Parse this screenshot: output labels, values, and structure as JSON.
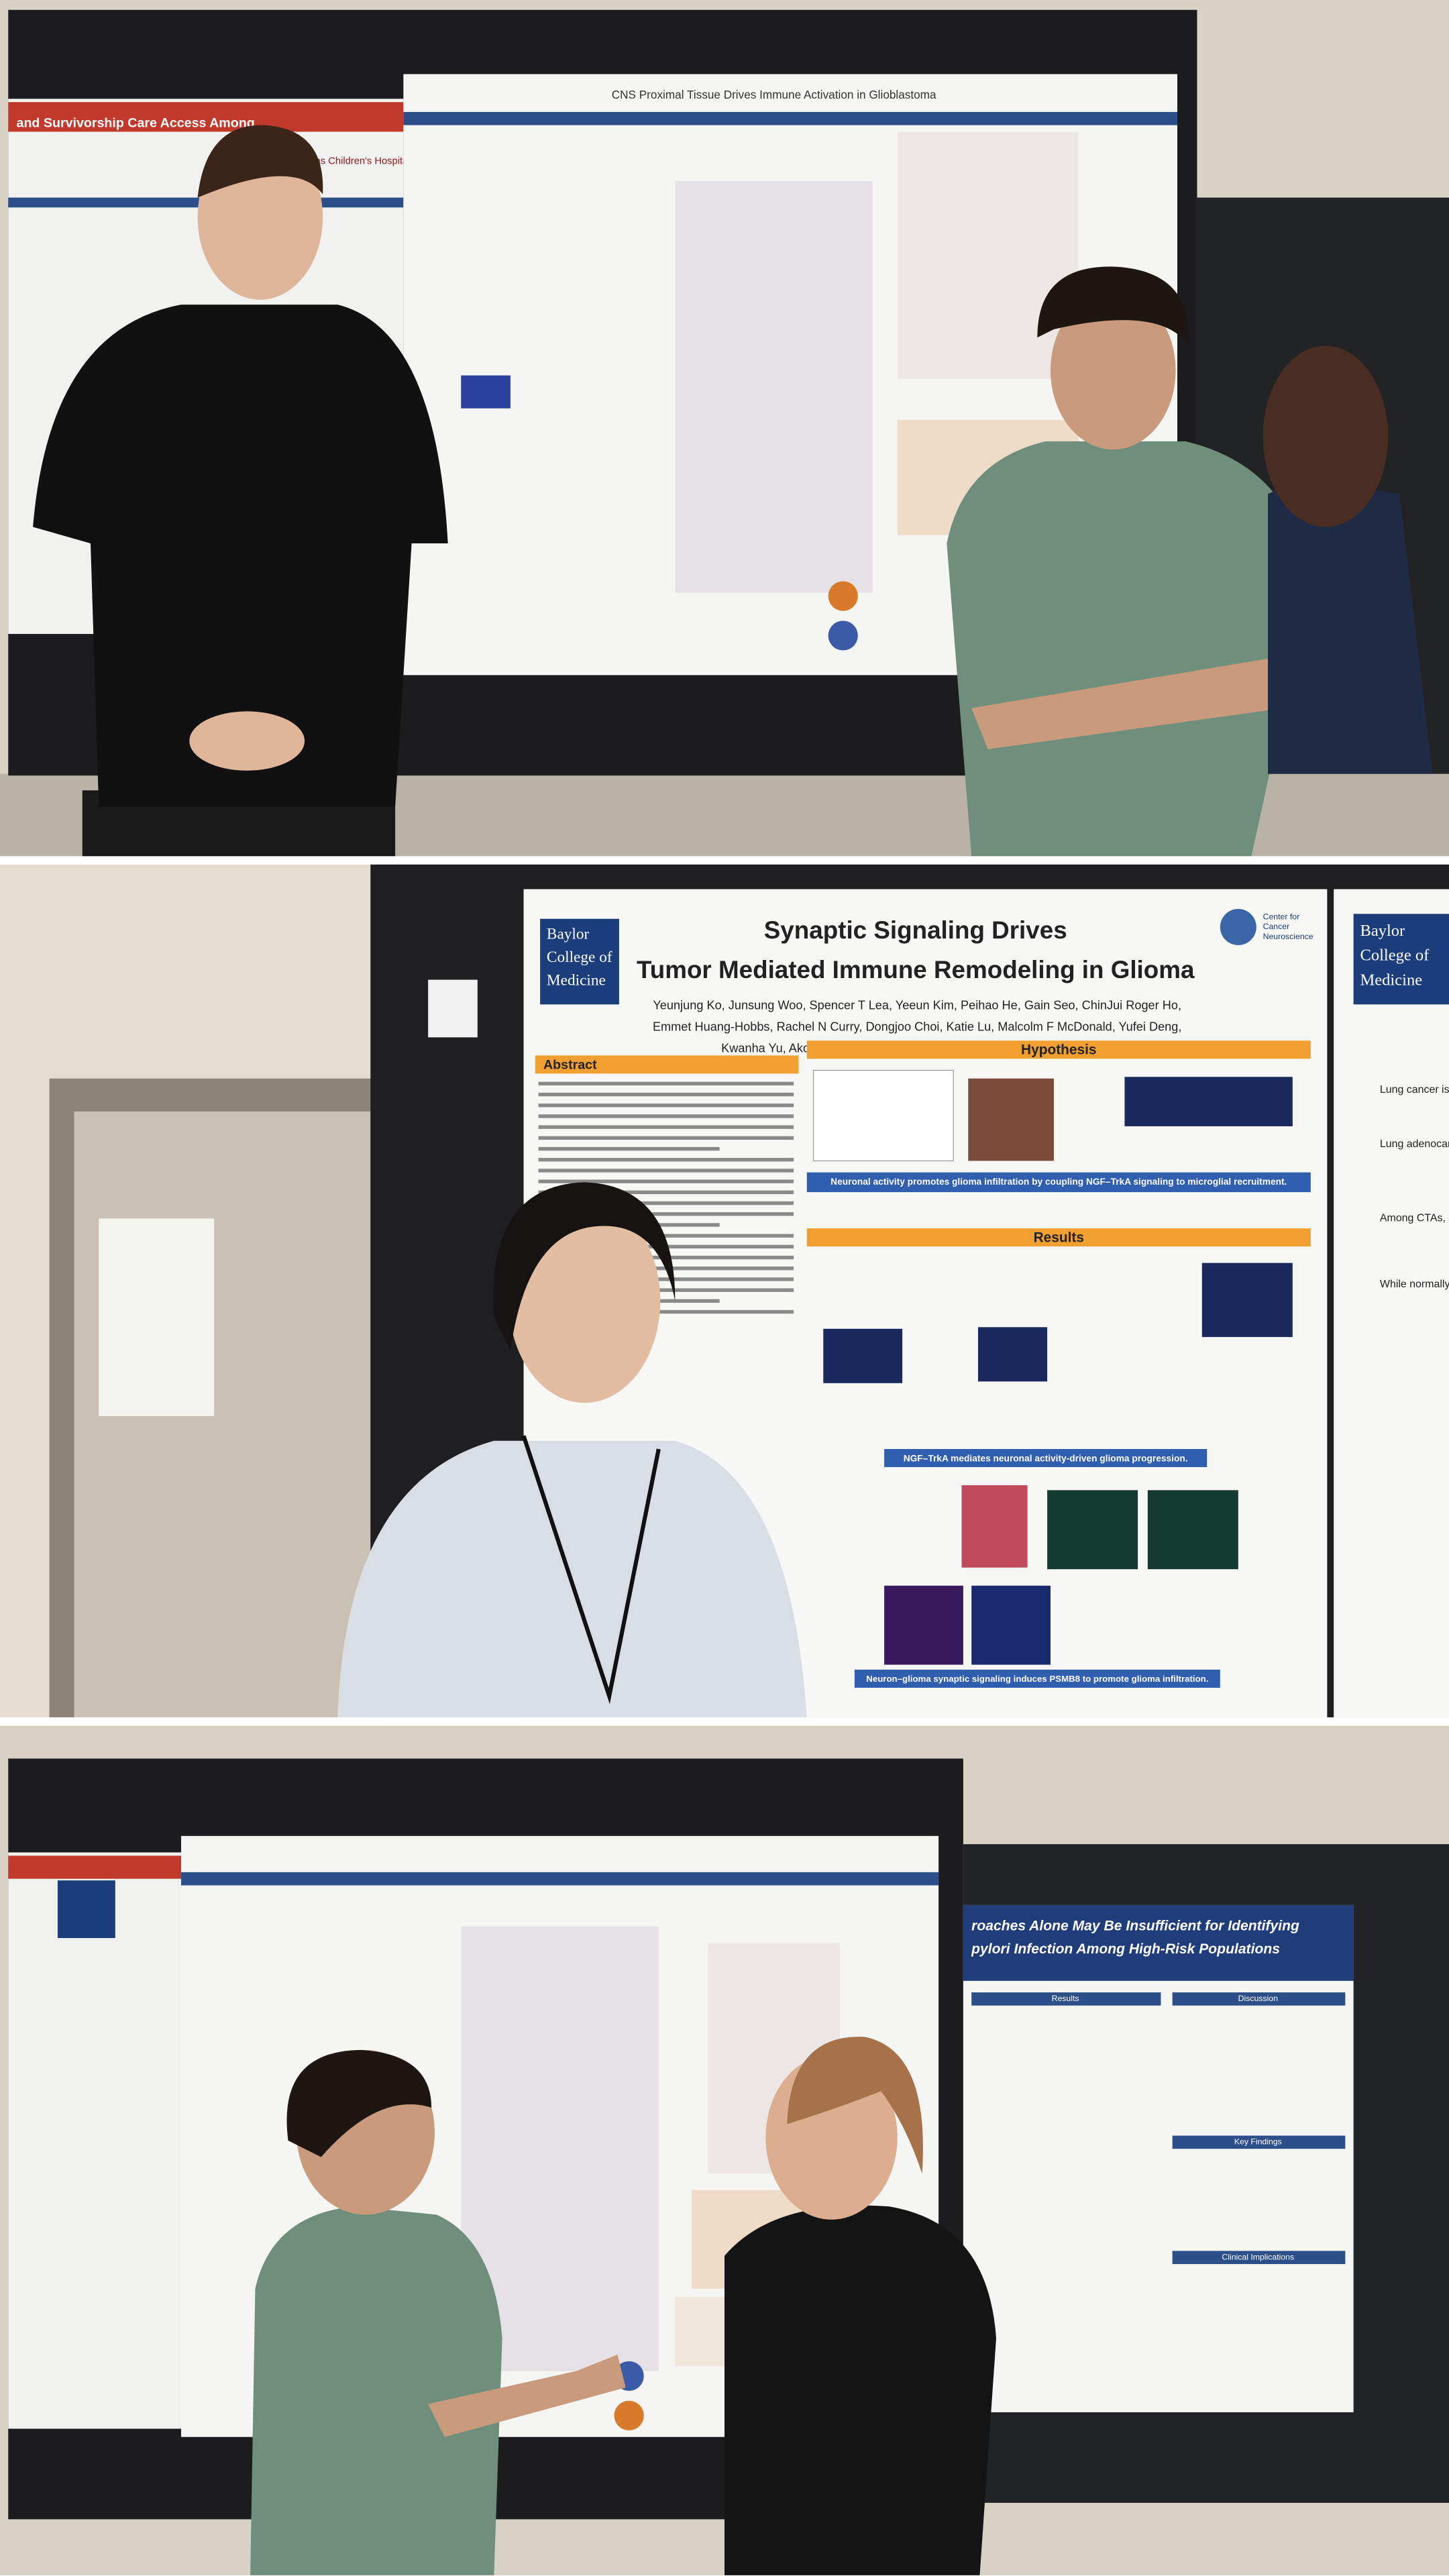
{
  "photos": [
    {
      "poster": {
        "title": "CNS Proximal Tissue Drives Immune Activation in Glioblastoma"
      },
      "left_poster": {
        "title": "and Survivorship Care Access Among",
        "logo": "Texas Children's Hospital"
      }
    },
    {
      "poster": {
        "logo": [
          "Baylor",
          "College of",
          "Medicine"
        ],
        "center": [
          "Center for",
          "Cancer",
          "Neuroscience"
        ],
        "title": [
          "Synaptic Signaling Drives",
          "Tumor Mediated Immune Remodeling in Glioma"
        ],
        "authors": [
          "Yeunjung Ko, Junsung Woo, Spencer T Lea, Yeeun Kim, Peihao He, Gain Seo, ChinJui Roger Ho,",
          "Emmet Huang-Hobbs, Rachel N Curry, Dongjoo Choi, Katie Lu, Malcolm F McDonald, Yufei Deng,",
          "Kwanha Yu, Akdes Serin-Harmanci, Ganesh Rao, and Benjamin Deneen"
        ],
        "sections": [
          "Abstract",
          "Hypothesis",
          "Results"
        ],
        "captions": [
          "Neuronal activity promotes glioma infiltration by coupling NGF–TrkA signaling to microglial recruitment.",
          "NGF–TrkA mediates neuronal activity-driven glioma progression.",
          "Neuron–glioma synaptic signaling induces PSMB8 to promote glioma infiltration."
        ]
      },
      "side_poster": {
        "logo": [
          "Baylor",
          "College of",
          "Medicine"
        ],
        "bullets": [
          "Lung cancer is",
          "Lung adenocarci",
          "Among CTAs, M",
          "While normally r"
        ]
      }
    },
    {
      "right_poster": {
        "title": [
          "roaches Alone May Be Insufficient for Identifying",
          "pylori Infection Among High-Risk Populations"
        ],
        "headings": [
          "Results",
          "Discussion",
          "Key Findings",
          "Clinical Implications"
        ]
      }
    }
  ]
}
